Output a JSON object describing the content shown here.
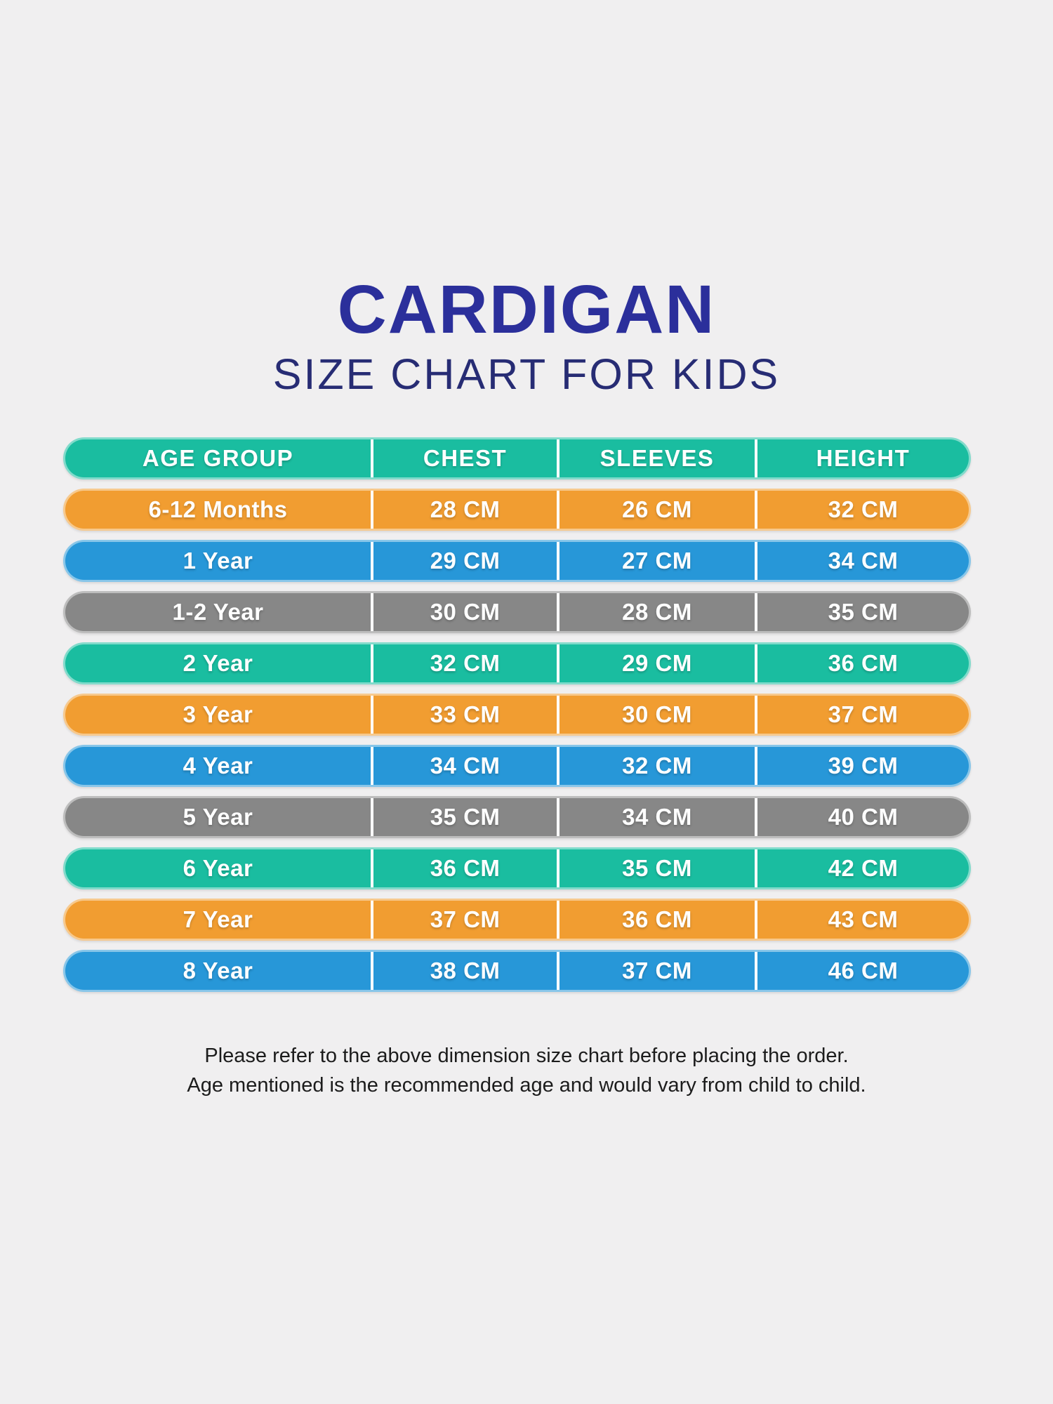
{
  "page": {
    "background_color": "#f0eff0"
  },
  "title": {
    "main": "CARDIGAN",
    "subtitle": "SIZE CHART FOR KIDS",
    "main_color": "#2b2f9b",
    "subtitle_color": "#272c74"
  },
  "table": {
    "columns": [
      "AGE GROUP",
      "CHEST",
      "SLEEVES",
      "HEIGHT"
    ],
    "header_color": "#1abda0",
    "row_colors": {
      "teal": "#1abda0",
      "orange": "#f19d31",
      "blue": "#2797d8",
      "gray": "#878787"
    },
    "rows": [
      {
        "age": "6-12 Months",
        "chest": "28 CM",
        "sleeves": "26 CM",
        "height": "32 CM",
        "color": "orange"
      },
      {
        "age": "1 Year",
        "chest": "29 CM",
        "sleeves": "27 CM",
        "height": "34 CM",
        "color": "blue"
      },
      {
        "age": "1-2 Year",
        "chest": "30 CM",
        "sleeves": "28 CM",
        "height": "35 CM",
        "color": "gray"
      },
      {
        "age": "2 Year",
        "chest": "32 CM",
        "sleeves": "29 CM",
        "height": "36 CM",
        "color": "teal"
      },
      {
        "age": "3 Year",
        "chest": "33 CM",
        "sleeves": "30 CM",
        "height": "37 CM",
        "color": "orange"
      },
      {
        "age": "4 Year",
        "chest": "34 CM",
        "sleeves": "32 CM",
        "height": "39 CM",
        "color": "blue"
      },
      {
        "age": "5 Year",
        "chest": "35 CM",
        "sleeves": "34 CM",
        "height": "40 CM",
        "color": "gray"
      },
      {
        "age": "6 Year",
        "chest": "36 CM",
        "sleeves": "35 CM",
        "height": "42 CM",
        "color": "teal"
      },
      {
        "age": "7 Year",
        "chest": "37 CM",
        "sleeves": "36 CM",
        "height": "43 CM",
        "color": "orange"
      },
      {
        "age": "8 Year",
        "chest": "38 CM",
        "sleeves": "37 CM",
        "height": "46 CM",
        "color": "blue"
      }
    ]
  },
  "footer": {
    "line1": "Please refer to the above dimension size chart before placing the order.",
    "line2": "Age mentioned is the recommended age and would vary from child to child."
  },
  "chart_data": {
    "type": "table",
    "title": "CARDIGAN SIZE CHART FOR KIDS",
    "columns": [
      "AGE GROUP",
      "CHEST",
      "SLEEVES",
      "HEIGHT"
    ],
    "rows": [
      [
        "6-12 Months",
        "28 CM",
        "26 CM",
        "32 CM"
      ],
      [
        "1 Year",
        "29 CM",
        "27 CM",
        "34 CM"
      ],
      [
        "1-2 Year",
        "30 CM",
        "28 CM",
        "35 CM"
      ],
      [
        "2 Year",
        "32 CM",
        "29 CM",
        "36 CM"
      ],
      [
        "3 Year",
        "33 CM",
        "30 CM",
        "37 CM"
      ],
      [
        "4 Year",
        "34 CM",
        "32 CM",
        "39 CM"
      ],
      [
        "5 Year",
        "35 CM",
        "34 CM",
        "40 CM"
      ],
      [
        "6 Year",
        "36 CM",
        "35 CM",
        "42 CM"
      ],
      [
        "7 Year",
        "37 CM",
        "36 CM",
        "43 CM"
      ],
      [
        "8 Year",
        "38 CM",
        "37 CM",
        "46 CM"
      ]
    ],
    "units": "CM",
    "row_color_cycle": [
      "orange",
      "blue",
      "gray",
      "teal"
    ],
    "header_color": "#1abda0"
  }
}
